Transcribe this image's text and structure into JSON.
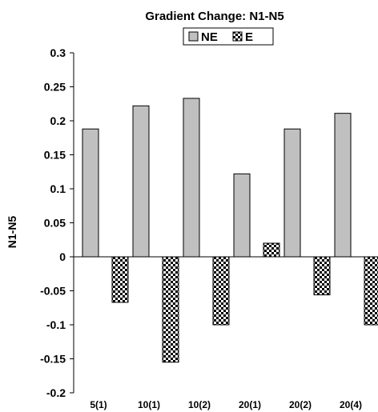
{
  "chart_data": {
    "type": "bar",
    "title": "Gradient Change: N1-N5",
    "xlabel": "",
    "ylabel": "N1-N5",
    "categories": [
      "5(1)",
      "10(1)",
      "10(2)",
      "20(1)",
      "20(2)",
      "20(4)"
    ],
    "series": [
      {
        "name": "NE",
        "values": [
          0.188,
          0.222,
          0.233,
          0.122,
          0.188,
          0.211
        ],
        "color": "#c0c0c0",
        "pattern": "solid"
      },
      {
        "name": "E",
        "values": [
          -0.067,
          -0.155,
          -0.1,
          0.02,
          -0.056,
          -0.1
        ],
        "color": "#000000",
        "pattern": "checkerboard"
      }
    ],
    "ylim": [
      -0.2,
      0.3
    ],
    "yticks": [
      "-0.2",
      "-0.15",
      "-0.1",
      "-0.05",
      "0",
      "0.05",
      "0.1",
      "0.15",
      "0.2",
      "0.25",
      "0.3"
    ],
    "grid": false,
    "legend_position": "top-center"
  }
}
